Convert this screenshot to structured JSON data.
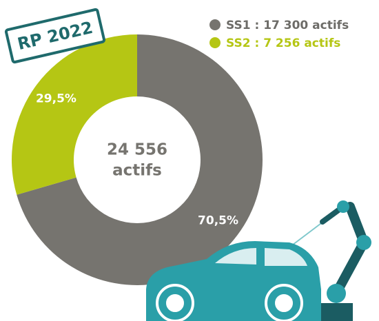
{
  "chart_data": {
    "type": "pie",
    "donut": true,
    "categories": [
      "SS1",
      "SS2"
    ],
    "values": [
      70.5,
      29.5
    ],
    "value_labels": [
      "70,5%",
      "29,5%"
    ],
    "colors": [
      "#76746f",
      "#b5c614"
    ],
    "legend": [
      "SS1 :  17 300 actifs",
      "SS2 :  7 256 actifs"
    ],
    "center_label": [
      "24 556",
      "actifs"
    ],
    "badge": "RP 2022"
  }
}
